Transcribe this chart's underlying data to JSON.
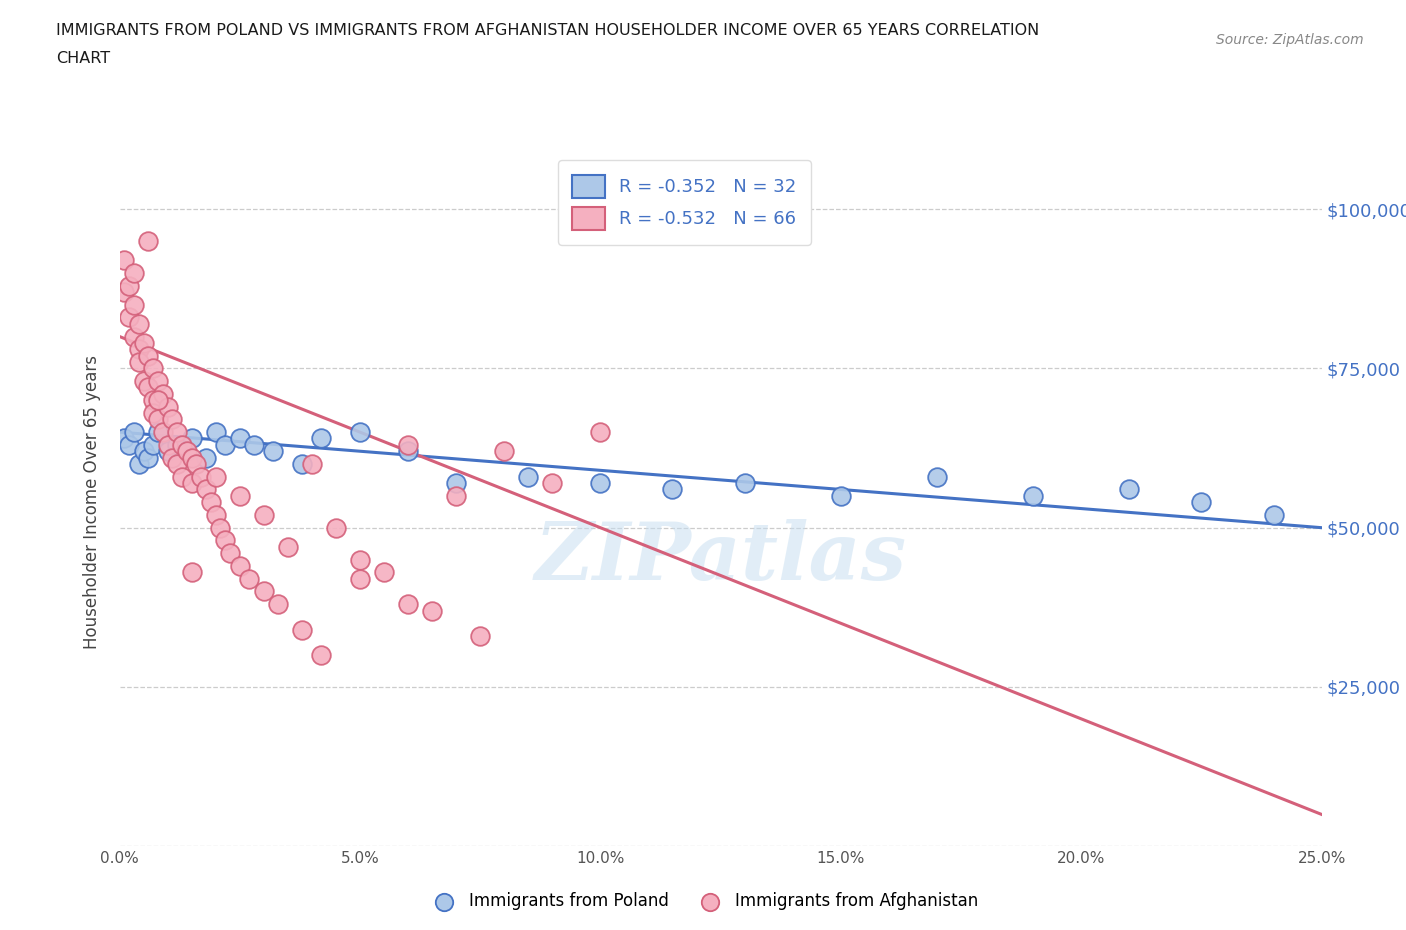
{
  "title_line1": "IMMIGRANTS FROM POLAND VS IMMIGRANTS FROM AFGHANISTAN HOUSEHOLDER INCOME OVER 65 YEARS CORRELATION",
  "title_line2": "CHART",
  "source": "Source: ZipAtlas.com",
  "ylabel": "Householder Income Over 65 years",
  "poland_color": "#adc8e8",
  "poland_edge_color": "#4472c4",
  "afghanistan_color": "#f5b0c0",
  "afghanistan_edge_color": "#d4607a",
  "poland_line_color": "#4472c4",
  "afghanistan_line_color": "#d4607a",
  "legend_text_color": "#4472c4",
  "y_tick_labels": [
    "",
    "$25,000",
    "$50,000",
    "$75,000",
    "$100,000"
  ],
  "y_ticks": [
    0,
    25000,
    50000,
    75000,
    100000
  ],
  "x_min": 0.0,
  "x_max": 0.25,
  "y_min": 0,
  "y_max": 108000,
  "poland_R": -0.352,
  "poland_N": 32,
  "afghanistan_R": -0.532,
  "afghanistan_N": 66,
  "poland_x": [
    0.001,
    0.002,
    0.003,
    0.004,
    0.005,
    0.006,
    0.007,
    0.008,
    0.01,
    0.012,
    0.015,
    0.018,
    0.02,
    0.022,
    0.025,
    0.028,
    0.032,
    0.038,
    0.042,
    0.05,
    0.06,
    0.07,
    0.085,
    0.1,
    0.115,
    0.13,
    0.15,
    0.17,
    0.19,
    0.21,
    0.225,
    0.24
  ],
  "poland_y": [
    64000,
    63000,
    65000,
    60000,
    62000,
    61000,
    63000,
    65000,
    62000,
    63000,
    64000,
    61000,
    65000,
    63000,
    64000,
    63000,
    62000,
    60000,
    64000,
    65000,
    62000,
    57000,
    58000,
    57000,
    56000,
    57000,
    55000,
    58000,
    55000,
    56000,
    54000,
    52000
  ],
  "afghanistan_x": [
    0.001,
    0.001,
    0.002,
    0.002,
    0.003,
    0.003,
    0.003,
    0.004,
    0.004,
    0.004,
    0.005,
    0.005,
    0.006,
    0.006,
    0.006,
    0.007,
    0.007,
    0.007,
    0.008,
    0.008,
    0.009,
    0.009,
    0.01,
    0.01,
    0.011,
    0.011,
    0.012,
    0.012,
    0.013,
    0.013,
    0.014,
    0.015,
    0.015,
    0.016,
    0.017,
    0.018,
    0.019,
    0.02,
    0.021,
    0.022,
    0.023,
    0.025,
    0.027,
    0.03,
    0.033,
    0.038,
    0.042,
    0.05,
    0.055,
    0.06,
    0.07,
    0.08,
    0.09,
    0.1,
    0.06,
    0.04,
    0.02,
    0.025,
    0.03,
    0.045,
    0.035,
    0.015,
    0.008,
    0.05,
    0.065,
    0.075
  ],
  "afghanistan_y": [
    92000,
    87000,
    88000,
    83000,
    85000,
    80000,
    90000,
    78000,
    82000,
    76000,
    79000,
    73000,
    77000,
    72000,
    95000,
    75000,
    70000,
    68000,
    73000,
    67000,
    71000,
    65000,
    69000,
    63000,
    67000,
    61000,
    65000,
    60000,
    63000,
    58000,
    62000,
    61000,
    57000,
    60000,
    58000,
    56000,
    54000,
    52000,
    50000,
    48000,
    46000,
    44000,
    42000,
    40000,
    38000,
    34000,
    30000,
    45000,
    43000,
    38000,
    55000,
    62000,
    57000,
    65000,
    63000,
    60000,
    58000,
    55000,
    52000,
    50000,
    47000,
    43000,
    70000,
    42000,
    37000,
    33000
  ]
}
